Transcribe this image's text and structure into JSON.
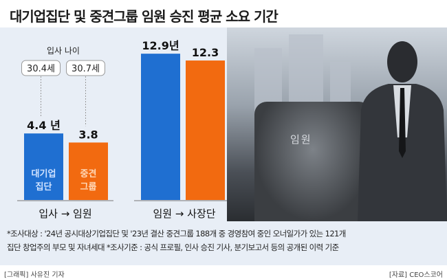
{
  "title": "대기업집단 및 중견그룹 임원 승진 평균 소요 기간",
  "chart_data": {
    "type": "bar",
    "title": "대기업집단 및 중견그룹 임원 승진 평균 소요 기간",
    "unit": "년",
    "groups": [
      {
        "label": "입사 → 임원",
        "from": "입사",
        "to": "임원",
        "entry_age_title": "입사 나이",
        "bars": [
          {
            "series": "대기업집단",
            "label_lines": [
              "대기업",
              "집단"
            ],
            "value": 4.4,
            "value_label": "4.4 년",
            "entry_age": "30.4세"
          },
          {
            "series": "중견그룹",
            "label_lines": [
              "중견",
              "그룹"
            ],
            "value": 3.8,
            "value_label": "3.8",
            "entry_age": "30.7세"
          }
        ]
      },
      {
        "label": "임원 → 사장단",
        "from": "임원",
        "to": "사장단",
        "bars": [
          {
            "series": "대기업집단",
            "value": 12.9,
            "value_label": "12.9년"
          },
          {
            "series": "중견그룹",
            "value": 12.3,
            "value_label": "12.3"
          }
        ]
      }
    ],
    "colors": {
      "대기업집단": "#1f6fd1",
      "중견그룹": "#f26a10"
    }
  },
  "photo_label": "임원",
  "notes": [
    "*조사대상 : '24년 공시대상기업집단 및 '23년 결산 중견그룹 188개 중 경영참여 중인 오너일가가 있는 121개",
    "집단 창업주의 부모 및 자녀세대 *조사기준 : 공식 프로필, 인사 승진 기사, 분기보고서 등의 공개된 이력 기준"
  ],
  "credit_left": "[그래픽] 사유진 기자",
  "credit_right": "[자료] CEO스코어"
}
